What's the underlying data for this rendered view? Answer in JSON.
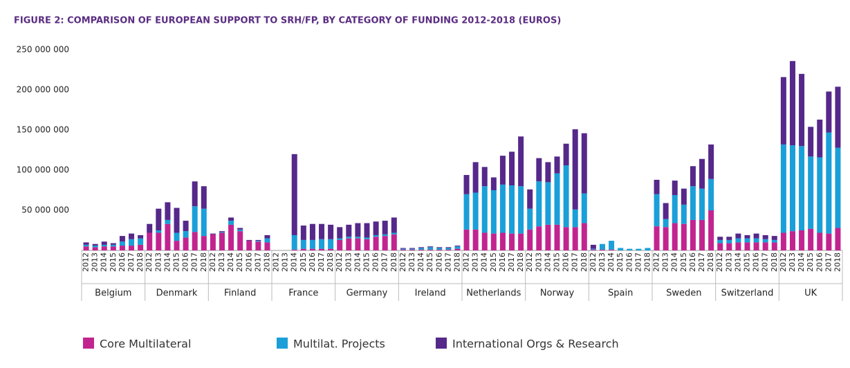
{
  "chart_data": {
    "type": "grouped-stacked-bar",
    "title": "FIGURE 2: COMPARISON OF EUROPEAN SUPPORT TO SRH/FP, BY CATEGORY OF FUNDING 2012-2018 (EUROS)",
    "groups": [
      "Belgium",
      "Denmark",
      "Finland",
      "France",
      "Germany",
      "Ireland",
      "Netherlands",
      "Norway",
      "Spain",
      "Sweden",
      "Switzerland",
      "UK"
    ],
    "categories": [
      "2012",
      "2013",
      "2014",
      "2015",
      "2016",
      "2017",
      "2018",
      "2012",
      "2013",
      "2014",
      "2015",
      "2016",
      "2017",
      "2018",
      "2012",
      "2013",
      "2014",
      "2015",
      "2016",
      "2017",
      "2018",
      "2012",
      "2013",
      "2014",
      "2015",
      "2016",
      "2017",
      "2018",
      "2012",
      "2013",
      "2014",
      "2015",
      "2016",
      "2017",
      "2018",
      "2012",
      "2013",
      "2014",
      "2015",
      "2016",
      "2017",
      "2018",
      "2012",
      "2013",
      "2014",
      "2015",
      "2016",
      "2017",
      "2018",
      "2012",
      "2013",
      "2014",
      "2015",
      "2016",
      "2017",
      "2018",
      "2012",
      "2013",
      "2014",
      "2015",
      "2016",
      "2017",
      "2018",
      "2012",
      "2013",
      "2014",
      "2015",
      "2016",
      "2017",
      "2018",
      "2012",
      "2013",
      "2014",
      "2015",
      "2016",
      "2017",
      "2018",
      "2012",
      "2013",
      "2014",
      "2015",
      "2016",
      "2017",
      "2018"
    ],
    "series": [
      {
        "name": "Core Multilateral",
        "color": "#c2248f",
        "values": [
          5000000,
          4000000,
          5000000,
          5000000,
          6000000,
          6000000,
          7000000,
          22000000,
          22000000,
          33000000,
          12000000,
          16000000,
          23000000,
          18000000,
          20000000,
          22000000,
          32000000,
          24000000,
          12000000,
          11000000,
          10000000,
          0,
          0,
          1000000,
          2000000,
          2000000,
          2000000,
          2000000,
          13000000,
          15000000,
          15000000,
          14000000,
          17000000,
          18000000,
          20000000,
          1000000,
          1000000,
          1000000,
          1000000,
          1000000,
          1000000,
          2000000,
          26000000,
          26000000,
          22000000,
          21000000,
          22000000,
          21000000,
          21000000,
          26000000,
          30000000,
          32000000,
          32000000,
          29000000,
          29000000,
          34000000,
          1000000,
          1000000,
          1000000,
          0,
          0,
          0,
          0,
          30000000,
          29000000,
          34000000,
          33000000,
          38000000,
          38000000,
          50000000,
          9000000,
          9000000,
          10000000,
          10000000,
          10000000,
          10000000,
          10000000,
          22000000,
          24000000,
          25000000,
          27000000,
          22000000,
          21000000,
          28000000
        ]
      },
      {
        "name": "Multilat. Projects",
        "color": "#1a9fd9",
        "values": [
          2000000,
          2000000,
          2000000,
          2000000,
          5000000,
          8000000,
          8000000,
          0,
          3000000,
          5000000,
          10000000,
          8000000,
          32000000,
          34000000,
          0,
          1000000,
          5000000,
          2000000,
          0,
          1000000,
          5000000,
          0,
          0,
          18000000,
          11000000,
          11000000,
          12000000,
          12000000,
          2000000,
          2000000,
          2000000,
          2000000,
          2000000,
          2000000,
          2000000,
          1000000,
          1000000,
          2000000,
          3000000,
          2000000,
          2000000,
          3000000,
          44000000,
          46000000,
          58000000,
          54000000,
          60000000,
          60000000,
          59000000,
          26000000,
          56000000,
          53000000,
          64000000,
          77000000,
          22000000,
          37000000,
          1000000,
          7000000,
          11000000,
          3000000,
          2000000,
          2000000,
          3000000,
          40000000,
          10000000,
          35000000,
          24000000,
          42000000,
          39000000,
          39000000,
          4000000,
          4000000,
          5000000,
          5000000,
          5000000,
          4000000,
          3000000,
          110000000,
          107000000,
          105000000,
          90000000,
          94000000,
          126000000,
          100000000
        ]
      },
      {
        "name": "International Orgs & Research",
        "color": "#55288a",
        "values": [
          3000000,
          2000000,
          4000000,
          2000000,
          7000000,
          7000000,
          4000000,
          11000000,
          27000000,
          22000000,
          31000000,
          13000000,
          31000000,
          28000000,
          1000000,
          1000000,
          4000000,
          2000000,
          1000000,
          1000000,
          4000000,
          0,
          0,
          101000000,
          18000000,
          20000000,
          19000000,
          18000000,
          14000000,
          15000000,
          17000000,
          18000000,
          17000000,
          17000000,
          19000000,
          1000000,
          1000000,
          1000000,
          1000000,
          1000000,
          1000000,
          1000000,
          24000000,
          38000000,
          24000000,
          16000000,
          36000000,
          42000000,
          62000000,
          24000000,
          29000000,
          25000000,
          21000000,
          27000000,
          100000000,
          75000000,
          5000000,
          0,
          0,
          0,
          0,
          0,
          0,
          18000000,
          20000000,
          18000000,
          20000000,
          25000000,
          37000000,
          43000000,
          4000000,
          4000000,
          6000000,
          4000000,
          6000000,
          5000000,
          5000000,
          84000000,
          105000000,
          90000000,
          37000000,
          47000000,
          51000000,
          76000000
        ]
      }
    ],
    "ylim": [
      0,
      250000000
    ],
    "yticks": [
      {
        "value": 50000000,
        "label": "50 000 000"
      },
      {
        "value": 100000000,
        "label": "100 000 000"
      },
      {
        "value": 150000000,
        "label": "150 000 000"
      },
      {
        "value": 200000000,
        "label": "200 000 000"
      },
      {
        "value": 250000000,
        "label": "250 000 000"
      }
    ],
    "grid": false
  }
}
